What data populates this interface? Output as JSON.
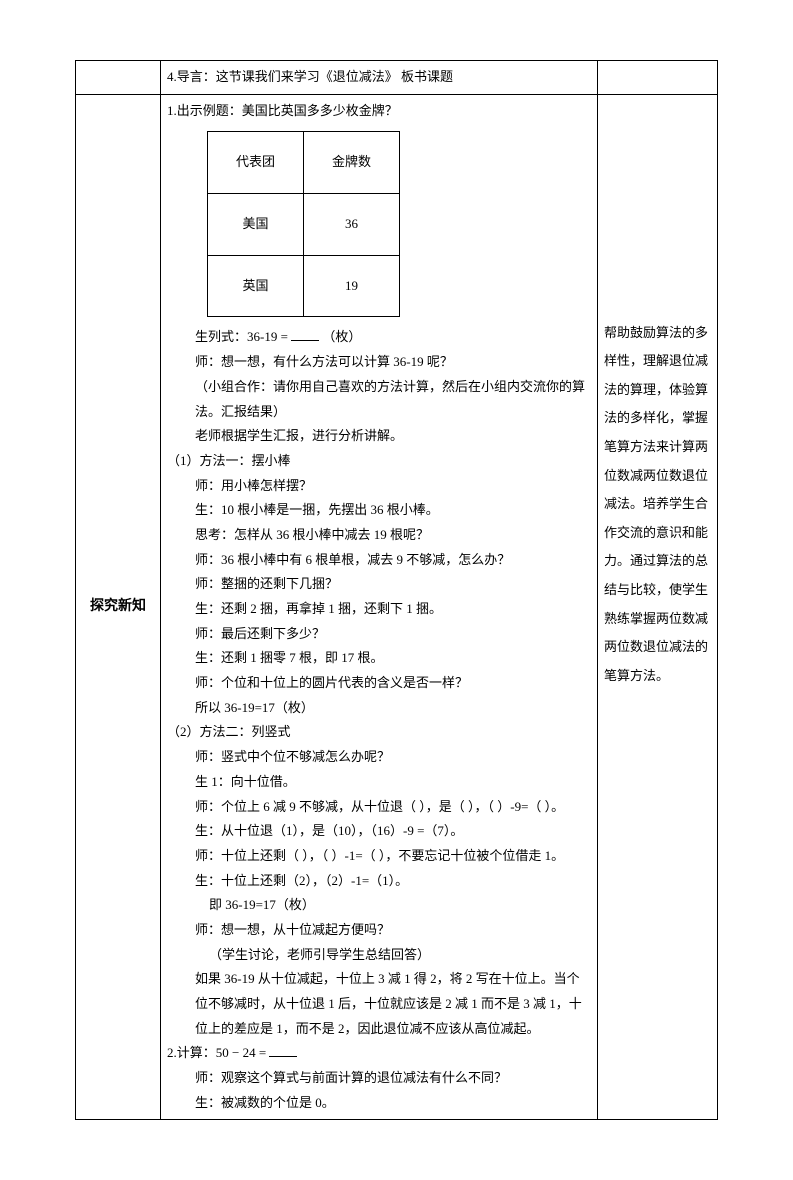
{
  "row1": {
    "middle": "4.导言：这节课我们来学习《退位减法》 板书课题"
  },
  "section_label": "探究新知",
  "example": {
    "intro": "1.出示例题：美国比英国多多少枚金牌？",
    "table": {
      "header1": "代表团",
      "header2": "金牌数",
      "row1_col1": "美国",
      "row1_col2": "36",
      "row2_col1": "英国",
      "row2_col2": "19"
    },
    "line1": "生列式：36-19 =",
    "line1_suffix": "（枚）",
    "line2": "师：想一想，有什么方法可以计算 36-19 呢？",
    "line3": "（小组合作：请你用自己喜欢的方法计算，然后在小组内交流你的算法。汇报结果）",
    "line4": "老师根据学生汇报，进行分析讲解。",
    "method1_title": "（1）方法一：摆小棒",
    "m1_1": "师：用小棒怎样摆？",
    "m1_2": "生：10 根小棒是一捆，先摆出 36 根小棒。",
    "m1_3": "思考：怎样从 36 根小棒中减去 19 根呢？",
    "m1_4": "师：36 根小棒中有 6 根单根，减去 9 不够减，怎么办？",
    "m1_5": "师：整捆的还剩下几捆？",
    "m1_6": "生：还剩 2 捆，再拿掉 1 捆，还剩下 1 捆。",
    "m1_7": "师：最后还剩下多少？",
    "m1_8": "生：还剩 1 捆零 7 根，即 17 根。",
    "m1_9": "师：个位和十位上的圆片代表的含义是否一样？",
    "m1_10": "所以 36-19=17（枚）",
    "method2_title": "（2）方法二：列竖式",
    "m2_1": "师：竖式中个位不够减怎么办呢？",
    "m2_2": "生 1：向十位借。",
    "m2_3a": "师：个位上 6 减 9 不够减，从十位退（ ），是（ ），（ ）-9=（ ）。",
    "m2_4": "生：从十位退（1），是（10），（16）-9 =（7）。",
    "m2_5": "师：十位上还剩（ ），（ ）-1=（ ），不要忘记十位被个位借走 1。",
    "m2_6": "生：十位上还剩（2），（2）-1=（1）。",
    "m2_7": "即 36-19=17（枚）",
    "m2_8": "师：想一想，从十位减起方便吗？",
    "m2_9": "（学生讨论，老师引导学生总结回答）",
    "m2_10": "如果 36-19 从十位减起，十位上 3 减 1 得 2，将 2 写在十位上。当个位不够减时，从十位退 1 后，十位就应该是 2 减 1 而不是 3 减 1，十位上的差应是 1，而不是 2，因此退位减不应该从高位减起。",
    "calc2_title": "2.计算：50 − 24 =",
    "c2_1": "师：观察这个算式与前面计算的退位减法有什么不同？",
    "c2_2": "生：被减数的个位是 0。"
  },
  "right_notes": "帮助鼓励算法的多样性，理解退位减法的算理，体验算法的多样化，掌握笔算方法来计算两位数减两位数退位减法。培养学生合作交流的意识和能力。通过算法的总结与比较，使学生熟练掌握两位数减两位数退位减法的笔算方法。"
}
